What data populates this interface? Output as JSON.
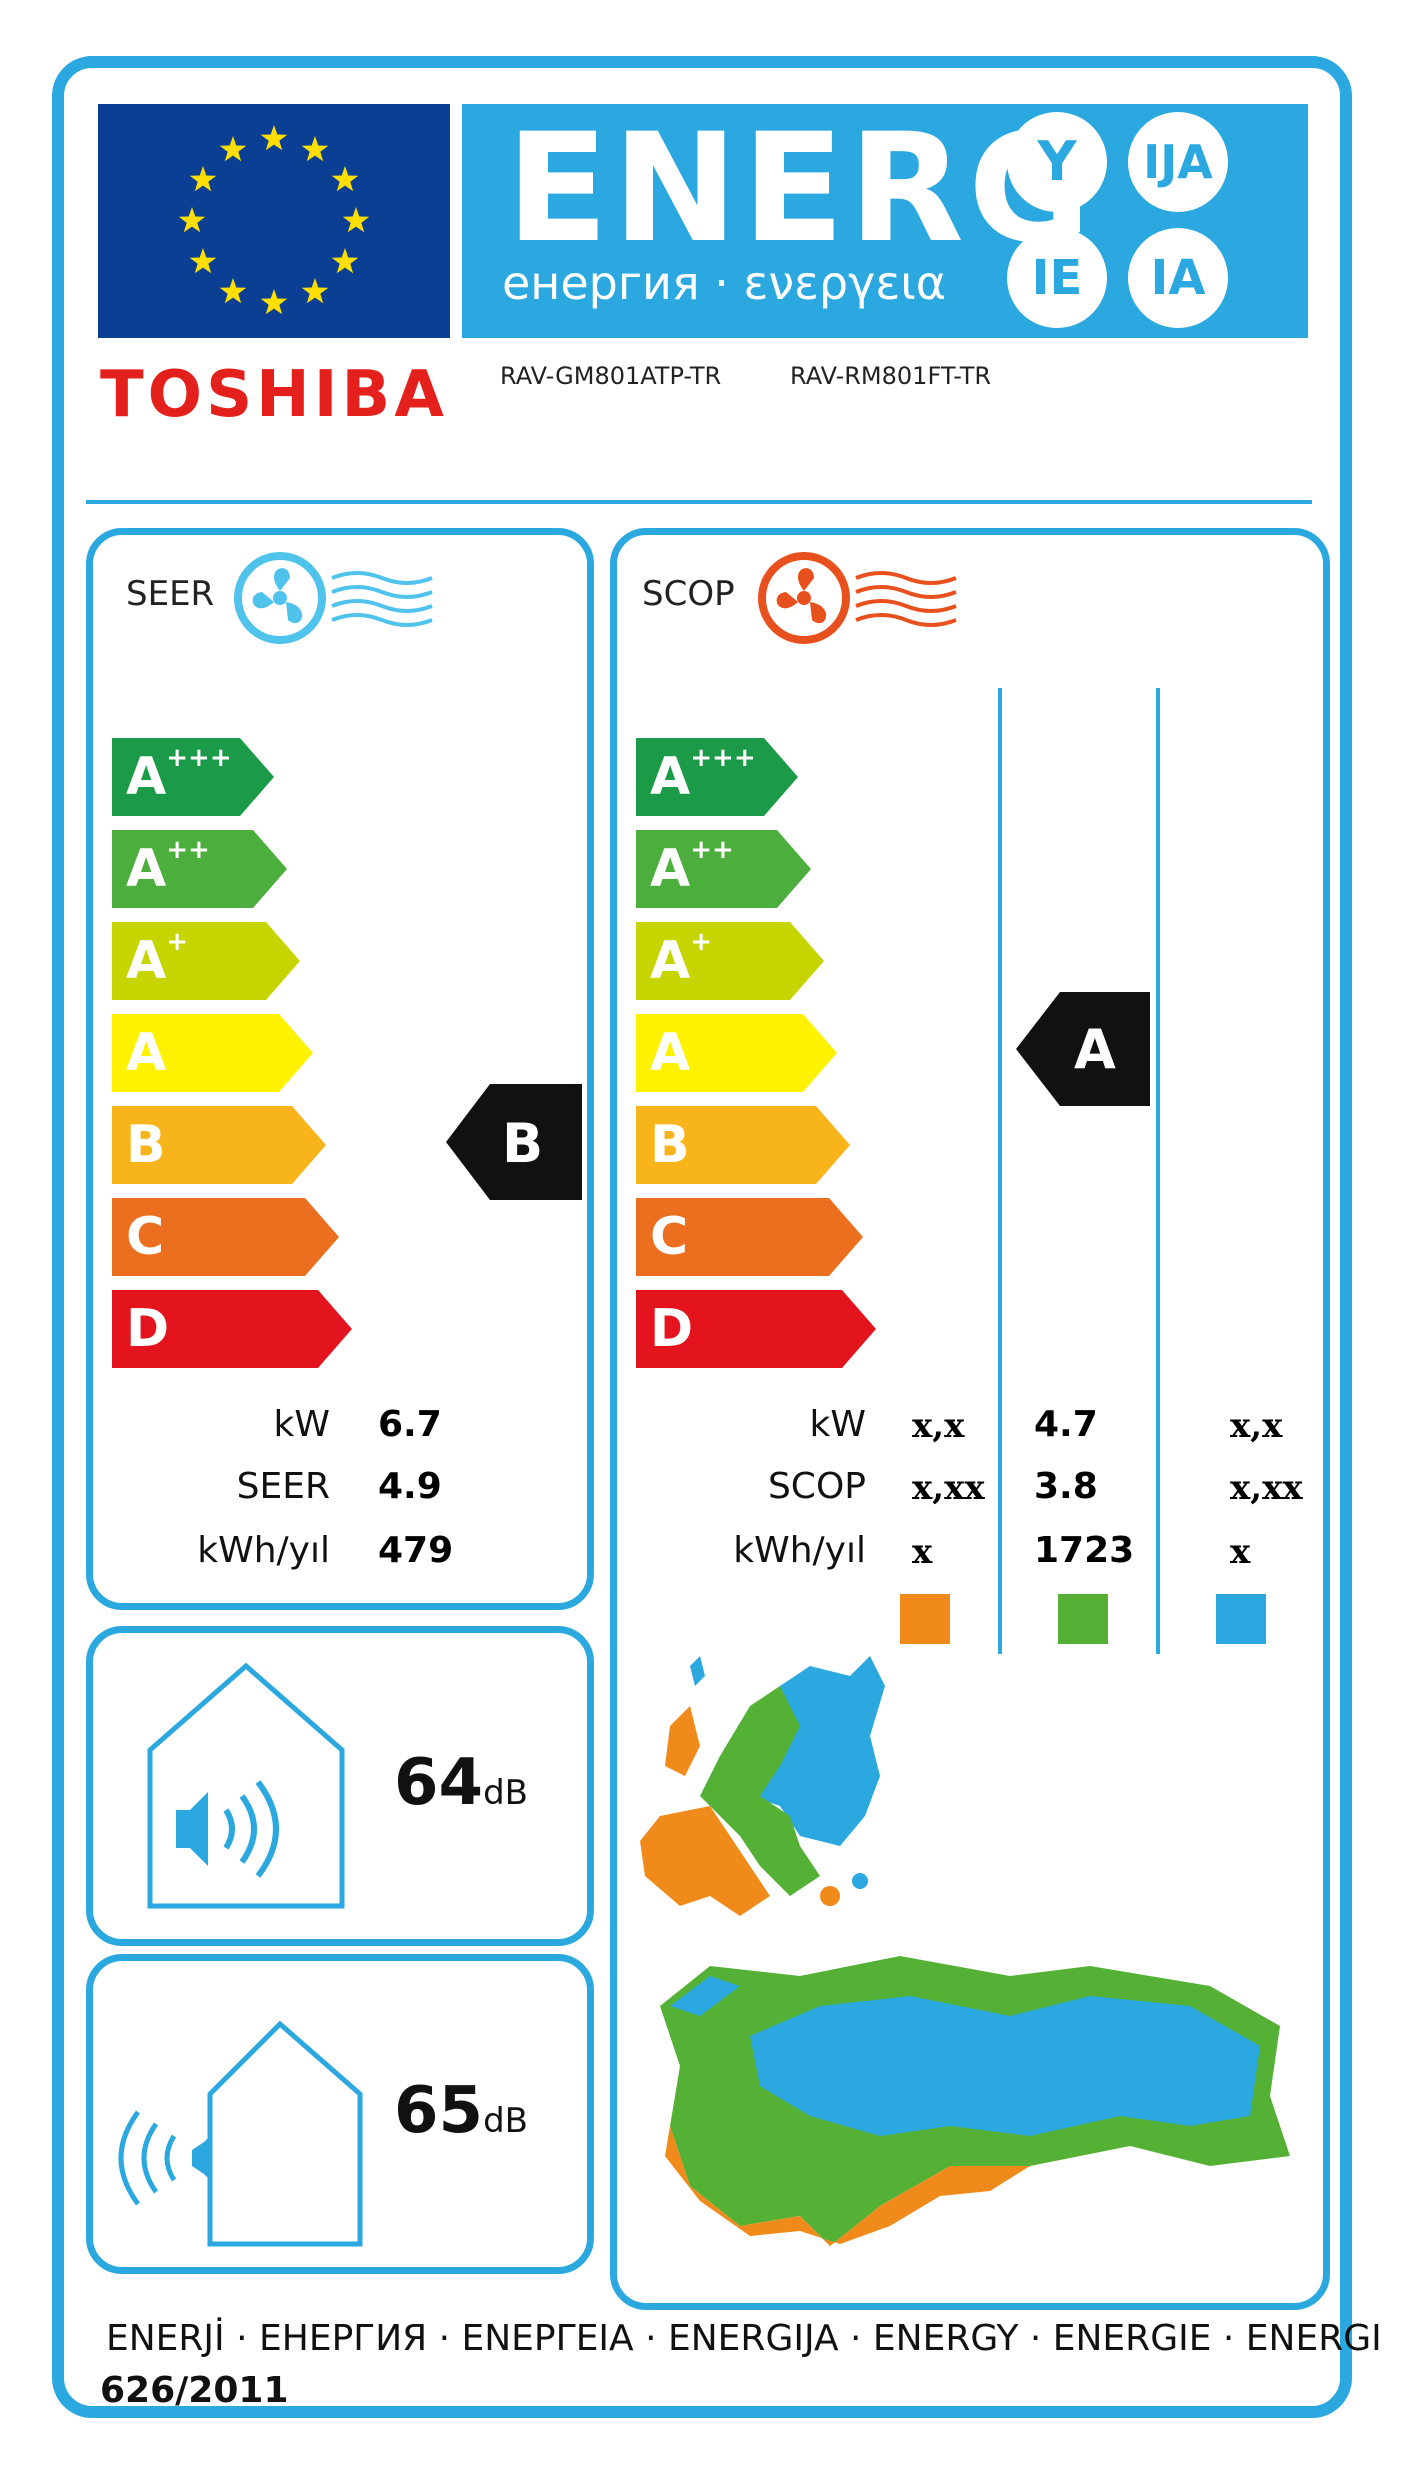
{
  "header": {
    "energy_word": "ENERG",
    "energy_sub": "енергия · ενεργεια",
    "suffixes": [
      "Y",
      "IJA",
      "IE",
      "IA"
    ],
    "brand": "TOSHIBA",
    "model_indoor": "RAV-GM801ATP-TR",
    "model_outdoor": "RAV-RM801FT-TR"
  },
  "colors": {
    "frame": "#2aa8df",
    "eu_flag": "#0b3f94",
    "star": "#ffde00",
    "class_colors": [
      "#1b9a48",
      "#4caf3d",
      "#c6d400",
      "#fff200",
      "#f7b51b",
      "#eb6f1f",
      "#e3141d"
    ],
    "zone_warm": "#f08a1b",
    "zone_average": "#55b135",
    "zone_cold": "#2aa8df"
  },
  "cooling": {
    "title": "SEER",
    "icon": "fan-cool-icon",
    "classes": [
      {
        "main": "A",
        "sup": "+++"
      },
      {
        "main": "A",
        "sup": "++"
      },
      {
        "main": "A",
        "sup": "+"
      },
      {
        "main": "A",
        "sup": ""
      },
      {
        "main": "B",
        "sup": ""
      },
      {
        "main": "C",
        "sup": ""
      },
      {
        "main": "D",
        "sup": ""
      }
    ],
    "rating": "B",
    "labels": {
      "kw": "kW",
      "seer": "SEER",
      "kwh": "kWh/yıl"
    },
    "values": {
      "kw": "6.7",
      "seer": "4.9",
      "kwh": "479"
    }
  },
  "heating": {
    "title": "SCOP",
    "icon": "fan-heat-icon",
    "classes": [
      {
        "main": "A",
        "sup": "+++"
      },
      {
        "main": "A",
        "sup": "++"
      },
      {
        "main": "A",
        "sup": "+"
      },
      {
        "main": "A",
        "sup": ""
      },
      {
        "main": "B",
        "sup": ""
      },
      {
        "main": "C",
        "sup": ""
      },
      {
        "main": "D",
        "sup": ""
      }
    ],
    "rating": "A",
    "labels": {
      "kw": "kW",
      "scop": "SCOP",
      "kwh": "kWh/yıl"
    },
    "warm": {
      "kw": "x,x",
      "scop": "x,xx",
      "kwh": "x"
    },
    "average": {
      "kw": "4.7",
      "scop": "3.8",
      "kwh": "1723"
    },
    "cold": {
      "kw": "x,x",
      "scop": "x,xx",
      "kwh": "x"
    }
  },
  "noise": {
    "indoor_value": "64",
    "outdoor_value": "65",
    "unit": "dB"
  },
  "footer": {
    "languages": "ENERJİ  · ЕНЕРГИЯ · ΕΝΕΡΓΕΙΑ · ENERGIJA · ENERGY · ENERGIE · ENERGI",
    "regulation": "626/2011"
  }
}
